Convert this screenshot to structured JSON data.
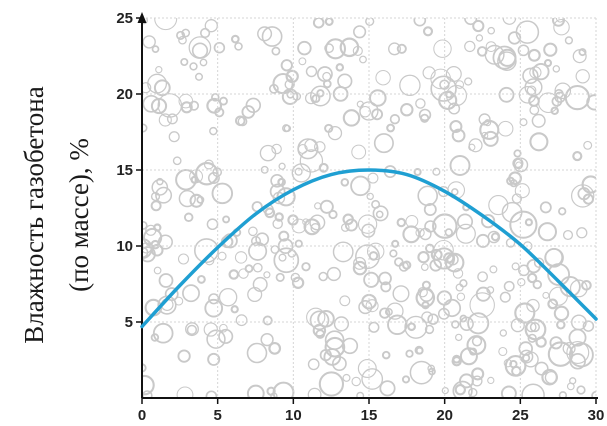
{
  "chart_data": {
    "type": "line",
    "title": "",
    "xlabel": "",
    "ylabel_lines": [
      "Влажность газобетона",
      "(по массе), %"
    ],
    "xlim": [
      0,
      30
    ],
    "ylim": [
      0,
      25
    ],
    "x_ticks": [
      0,
      5,
      10,
      15,
      20,
      25,
      30
    ],
    "y_ticks": [
      5,
      10,
      15,
      20,
      25
    ],
    "grid": true,
    "background_pattern": "bubbles",
    "series": [
      {
        "color": "#1f9fd2",
        "x": [
          0,
          2.5,
          5,
          7.5,
          10,
          12.5,
          15,
          17.5,
          20,
          22.5,
          25,
          27.5,
          30
        ],
        "y": [
          4.7,
          7.4,
          9.9,
          12.1,
          13.7,
          14.7,
          15.0,
          14.7,
          13.6,
          12.0,
          10.1,
          7.7,
          5.2
        ]
      }
    ]
  }
}
